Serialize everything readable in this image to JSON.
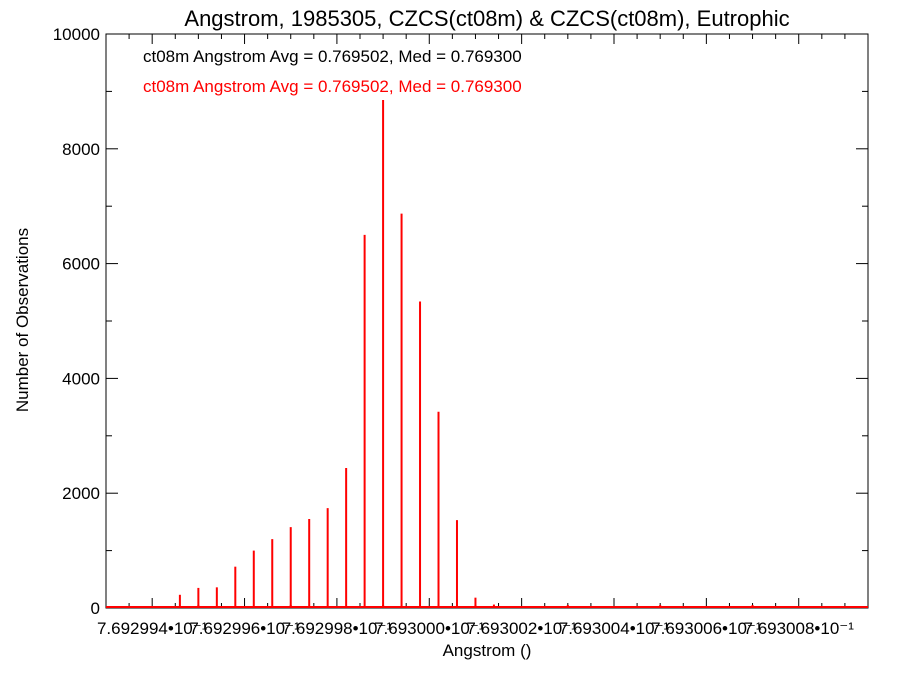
{
  "chart_data": {
    "type": "bar",
    "title": "Angstrom, 1985305, CZCS(ct08m) & CZCS(ct08m), Eutrophic",
    "xlabel": "Angstrom ()",
    "ylabel": "Number of Observations",
    "xlim": [
      0.7692993,
      0.76930095
    ],
    "ylim": [
      0,
      10000
    ],
    "x_ticks": [
      {
        "value": 0.7692994,
        "label": "7.692994•10⁻¹"
      },
      {
        "value": 0.7692996,
        "label": "7.692996•10⁻¹"
      },
      {
        "value": 0.7692998,
        "label": "7.692998•10⁻¹"
      },
      {
        "value": 0.7693,
        "label": "7.693000•10⁻¹"
      },
      {
        "value": 0.7693002,
        "label": "7.693002•10⁻¹"
      },
      {
        "value": 0.7693004,
        "label": "7.693004•10⁻¹"
      },
      {
        "value": 0.7693006,
        "label": "7.693006•10⁻¹"
      },
      {
        "value": 0.7693008,
        "label": "7.693008•10⁻¹"
      }
    ],
    "y_ticks": [
      0,
      2000,
      4000,
      6000,
      8000,
      10000
    ],
    "annotations": [
      {
        "text": "ct08m Angstrom Avg = 0.769502, Med = 0.769300",
        "color": "#000000"
      },
      {
        "text": "ct08m Angstrom Avg = 0.769502, Med = 0.769300",
        "color": "#ff0000"
      }
    ],
    "series": [
      {
        "color": "#ff0000",
        "x": [
          0.7692995,
          0.7692997,
          0.7692999,
          0.7693001,
          0.7693003,
          0.7693005,
          0.7693007
        ],
        "values": [
          0,
          0,
          0,
          0,
          0,
          0,
          0
        ]
      }
    ],
    "bars": {
      "color": "#ff0000",
      "x": [
        0.76929946,
        0.7692995,
        0.76929954,
        0.76929958,
        0.76929962,
        0.76929966,
        0.7692997,
        0.76929974,
        0.76929978,
        0.76929982,
        0.76929986,
        0.7692999,
        0.76929994,
        0.76929998,
        0.76930002,
        0.76930006,
        0.7693001,
        0.76930014,
        0.76930018
      ],
      "values": [
        230,
        350,
        360,
        720,
        1000,
        1200,
        1410,
        1550,
        1740,
        2440,
        6500,
        8850,
        6870,
        5340,
        3420,
        1530,
        180,
        60,
        30
      ]
    }
  }
}
